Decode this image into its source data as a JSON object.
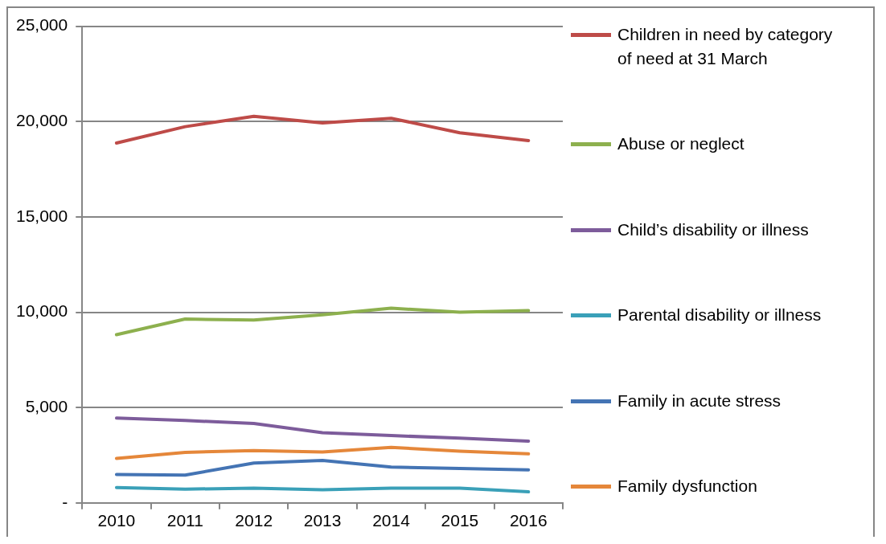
{
  "chart_data": {
    "type": "line",
    "categories": [
      "2010",
      "2011",
      "2012",
      "2013",
      "2014",
      "2015",
      "2016"
    ],
    "series": [
      {
        "name": "Children in need by category of need at 31 March",
        "color": "#be4b48",
        "values": [
          18870,
          19730,
          20270,
          19930,
          20170,
          19410,
          19000
        ]
      },
      {
        "name": "Abuse or neglect",
        "color": "#8db04e",
        "values": [
          8820,
          9640,
          9590,
          9860,
          10210,
          10000,
          10090
        ]
      },
      {
        "name": "Child’s disability or illness",
        "color": "#7d5c9b",
        "values": [
          4450,
          4320,
          4160,
          3680,
          3530,
          3390,
          3240
        ]
      },
      {
        "name": "Parental disability or illness",
        "color": "#3aa0b8",
        "values": [
          800,
          720,
          770,
          690,
          770,
          770,
          580
        ]
      },
      {
        "name": "Family in acute stress",
        "color": "#4474b4",
        "values": [
          1490,
          1460,
          2090,
          2230,
          1880,
          1800,
          1730
        ]
      },
      {
        "name": "Family dysfunction",
        "color": "#e5873a",
        "values": [
          2330,
          2650,
          2740,
          2670,
          2910,
          2710,
          2570
        ]
      }
    ],
    "ylim": [
      0,
      25000
    ],
    "yticks": [
      {
        "value": 0,
        "label": "-"
      },
      {
        "value": 5000,
        "label": "5,000"
      },
      {
        "value": 10000,
        "label": "10,000"
      },
      {
        "value": 15000,
        "label": "15,000"
      },
      {
        "value": 20000,
        "label": "20,000"
      },
      {
        "value": 25000,
        "label": "25,000"
      }
    ],
    "grid": "y",
    "legend": "right",
    "marker": "none",
    "line_style": "solid"
  }
}
